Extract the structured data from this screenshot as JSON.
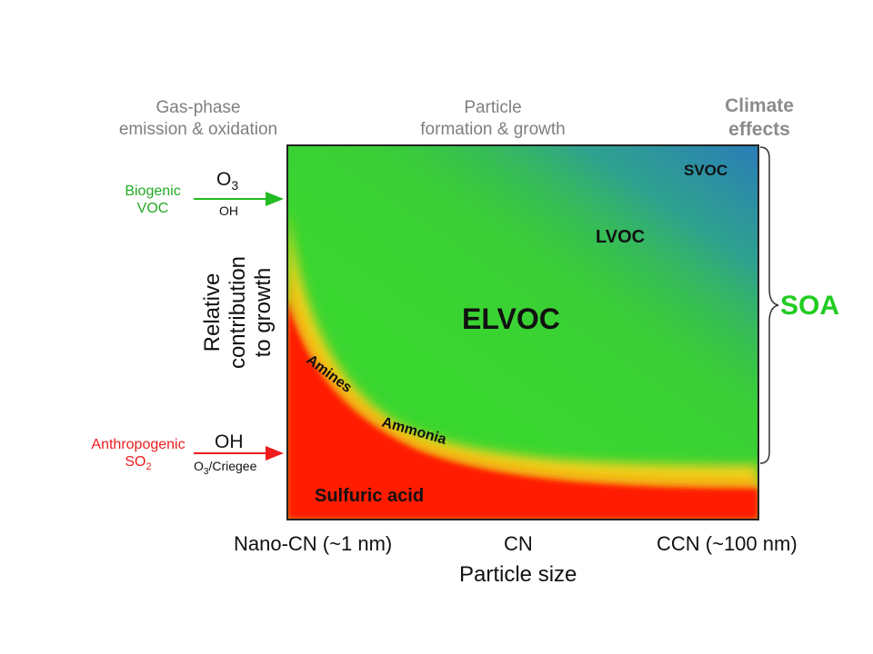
{
  "header": {
    "gas_phase": [
      "Gas-phase",
      "emission & oxidation"
    ],
    "particle": [
      "Particle",
      "formation & growth"
    ],
    "climate": [
      "Climate",
      "effects"
    ]
  },
  "sources": {
    "biogenic": {
      "label": [
        "Biogenic",
        "VOC"
      ],
      "oxidant_main": "O3",
      "oxidant_sub": "OH",
      "color": "#22aa22"
    },
    "anthropogenic": {
      "label": [
        "Anthropogenic",
        "SO2"
      ],
      "oxidant_main": "OH",
      "oxidant_sub": "O3/Criegee",
      "color": "#ee1c1c"
    }
  },
  "y_axis_label": [
    "Relative",
    "contribution",
    "to growth"
  ],
  "regions": {
    "svoc": "SVOC",
    "lvoc": "LVOC",
    "elvoc": "ELVOC",
    "amines": "Amines",
    "ammonia": "Ammonia",
    "sulfuric": "Sulfuric acid"
  },
  "bracket_label": "SOA",
  "x_axis": {
    "ticks": [
      "Nano-CN (~1 nm)",
      "CN",
      "CCN (~100 nm)"
    ],
    "title": "Particle size"
  },
  "colors": {
    "red": "#ff1a00",
    "yellow": "#f5c81c",
    "green": "#3ad630",
    "blue": "#2a82b4",
    "soa": "#22cc22"
  }
}
